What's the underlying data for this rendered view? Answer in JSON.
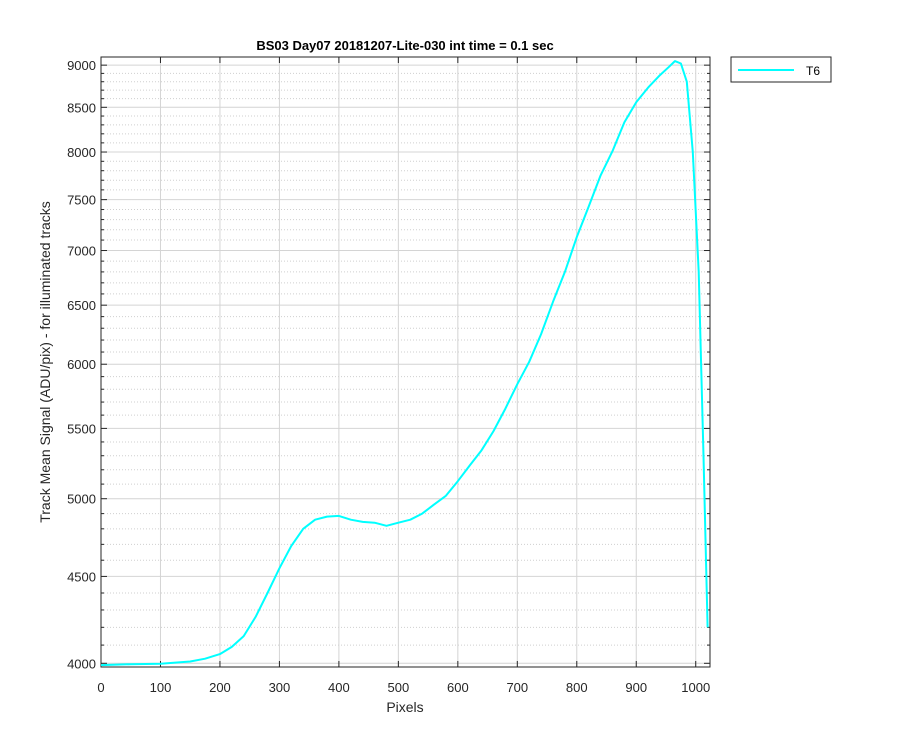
{
  "chart_data": {
    "type": "line",
    "title": "BS03 Day07 20181207-Lite-030 int time = 0.1 sec",
    "xlabel": "Pixels",
    "ylabel": "Track Mean Signal (ADU/pix) - for illuminated tracks",
    "yscale": "log",
    "xlim": [
      0,
      1024
    ],
    "ylim": [
      3980,
      9100
    ],
    "xticks": [
      0,
      100,
      200,
      300,
      400,
      500,
      600,
      700,
      800,
      900,
      1000
    ],
    "yticks": [
      4000,
      4500,
      5000,
      5500,
      6000,
      6500,
      7000,
      7500,
      8000,
      8500,
      9000
    ],
    "grid": "on (major and minor)",
    "legend_placement": "outside top-right",
    "series": [
      {
        "name": "T6",
        "color": "#00ffff",
        "points": [
          [
            0,
            3990
          ],
          [
            50,
            3995
          ],
          [
            100,
            3998
          ],
          [
            150,
            4010
          ],
          [
            175,
            4025
          ],
          [
            200,
            4050
          ],
          [
            220,
            4090
          ],
          [
            240,
            4150
          ],
          [
            260,
            4260
          ],
          [
            280,
            4400
          ],
          [
            300,
            4550
          ],
          [
            320,
            4690
          ],
          [
            340,
            4800
          ],
          [
            360,
            4860
          ],
          [
            380,
            4880
          ],
          [
            400,
            4885
          ],
          [
            420,
            4860
          ],
          [
            440,
            4845
          ],
          [
            460,
            4840
          ],
          [
            480,
            4820
          ],
          [
            500,
            4840
          ],
          [
            520,
            4860
          ],
          [
            540,
            4900
          ],
          [
            560,
            4960
          ],
          [
            580,
            5020
          ],
          [
            600,
            5120
          ],
          [
            620,
            5230
          ],
          [
            640,
            5340
          ],
          [
            660,
            5480
          ],
          [
            680,
            5650
          ],
          [
            700,
            5840
          ],
          [
            720,
            6020
          ],
          [
            740,
            6250
          ],
          [
            760,
            6530
          ],
          [
            780,
            6800
          ],
          [
            800,
            7130
          ],
          [
            820,
            7430
          ],
          [
            840,
            7750
          ],
          [
            860,
            8010
          ],
          [
            880,
            8330
          ],
          [
            900,
            8560
          ],
          [
            920,
            8730
          ],
          [
            940,
            8880
          ],
          [
            955,
            8980
          ],
          [
            965,
            9050
          ],
          [
            975,
            9020
          ],
          [
            985,
            8800
          ],
          [
            995,
            8000
          ],
          [
            1005,
            6800
          ],
          [
            1013,
            5300
          ],
          [
            1020,
            4200
          ]
        ]
      }
    ]
  }
}
